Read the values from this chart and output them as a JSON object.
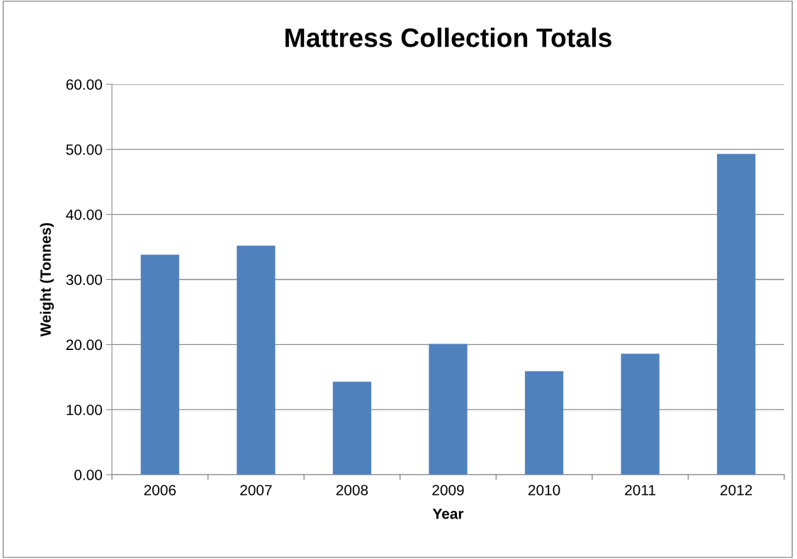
{
  "chart_data": {
    "type": "bar",
    "title": "Mattress Collection Totals",
    "xlabel": "Year",
    "ylabel": "Weight (Tonnes)",
    "categories": [
      "2006",
      "2007",
      "2008",
      "2009",
      "2010",
      "2011",
      "2012"
    ],
    "values": [
      33.8,
      35.2,
      14.3,
      20.1,
      15.9,
      18.6,
      49.3
    ],
    "color": "#4f81bd",
    "ylim": [
      0,
      60
    ],
    "yticks": [
      {
        "value": 0,
        "label": "0.00"
      },
      {
        "value": 10,
        "label": "10.00"
      },
      {
        "value": 20,
        "label": "20.00"
      },
      {
        "value": 30,
        "label": "30.00"
      },
      {
        "value": 40,
        "label": "40.00"
      },
      {
        "value": 50,
        "label": "50.00"
      },
      {
        "value": 60,
        "label": "60.00"
      }
    ],
    "grid": "y",
    "legend": false
  }
}
